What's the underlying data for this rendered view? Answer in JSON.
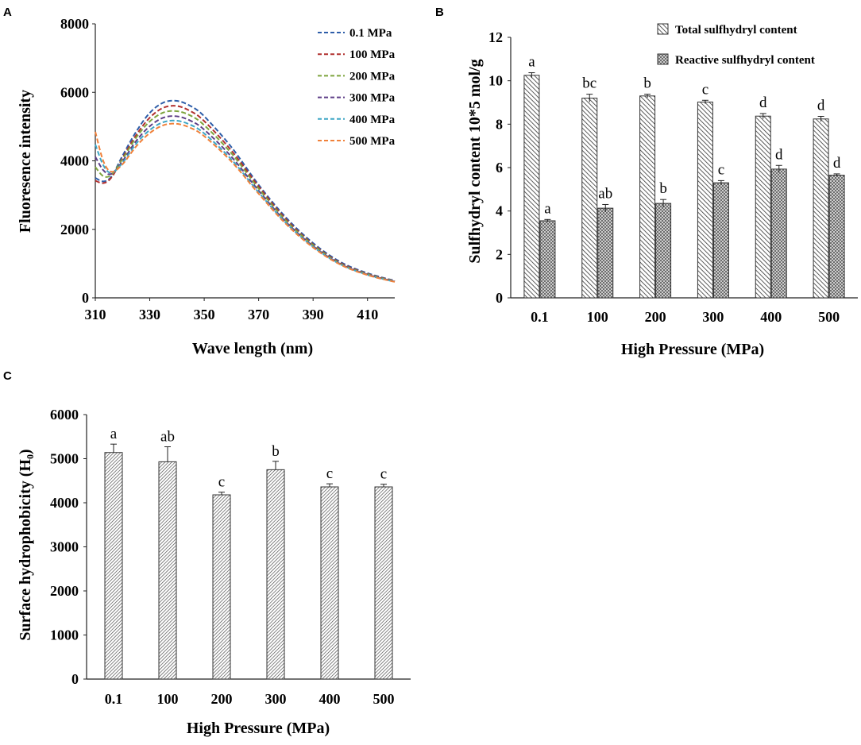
{
  "colors": {
    "axis": "#222222",
    "bar_stroke": "#333333",
    "series": [
      "#2e5ea9",
      "#b1302e",
      "#7ea43d",
      "#5e3f87",
      "#3ea6c5",
      "#f0813a"
    ]
  },
  "chart_data": [
    {
      "panel": "A",
      "type": "line",
      "xlabel": "Wave length (nm)",
      "ylabel": "Fluoresence intensity",
      "xlim": [
        310,
        420
      ],
      "ylim": [
        0,
        8000
      ],
      "xticks": [
        "310",
        "330",
        "350",
        "370",
        "390",
        "410"
      ],
      "yticks": [
        "0",
        "2000",
        "4000",
        "6000",
        "8000"
      ],
      "x": [
        310,
        313,
        316,
        320,
        325,
        330,
        335,
        340,
        345,
        350,
        360,
        370,
        380,
        390,
        400,
        410,
        420
      ],
      "series": [
        {
          "name": "0.1 MPa",
          "color": "#2e5ea9",
          "values": [
            3500,
            3400,
            3550,
            4150,
            4850,
            5400,
            5700,
            5750,
            5600,
            5300,
            4400,
            3300,
            2350,
            1600,
            1050,
            720,
            500
          ]
        },
        {
          "name": "100 MPa",
          "color": "#b1302e",
          "values": [
            3420,
            3350,
            3520,
            4080,
            4750,
            5260,
            5550,
            5600,
            5450,
            5160,
            4300,
            3250,
            2300,
            1560,
            1020,
            700,
            490
          ]
        },
        {
          "name": "200 MPa",
          "color": "#7ea43d",
          "values": [
            3820,
            3550,
            3600,
            4050,
            4680,
            5150,
            5410,
            5450,
            5320,
            5040,
            4220,
            3190,
            2260,
            1540,
            1000,
            690,
            480
          ]
        },
        {
          "name": "300 MPa",
          "color": "#5e3f87",
          "values": [
            4120,
            3720,
            3620,
            3990,
            4580,
            5010,
            5260,
            5300,
            5170,
            4910,
            4120,
            3130,
            2220,
            1510,
            990,
            680,
            475
          ]
        },
        {
          "name": "400 MPa",
          "color": "#3ea6c5",
          "values": [
            4480,
            3860,
            3650,
            3940,
            4500,
            4900,
            5130,
            5170,
            5050,
            4800,
            4040,
            3080,
            2190,
            1490,
            980,
            670,
            470
          ]
        },
        {
          "name": "500 MPa",
          "color": "#f0813a",
          "values": [
            4850,
            3980,
            3680,
            3900,
            4420,
            4810,
            5040,
            5080,
            4960,
            4720,
            3980,
            3040,
            2160,
            1470,
            970,
            665,
            465
          ]
        }
      ]
    },
    {
      "panel": "B",
      "type": "bar",
      "xlabel": "High Pressure (MPa)",
      "ylabel": "Sulfhydryl content  10*5 mol/g",
      "ylim": [
        0,
        12
      ],
      "yticks": [
        "0",
        "2",
        "4",
        "6",
        "8",
        "10",
        "12"
      ],
      "categories": [
        "0.1",
        "100",
        "200",
        "300",
        "400",
        "500"
      ],
      "series": [
        {
          "name": "Total sulfhydryl content",
          "values": [
            10.25,
            9.2,
            9.3,
            9.02,
            8.37,
            8.24
          ],
          "errors": [
            0.12,
            0.18,
            0.08,
            0.08,
            0.12,
            0.12
          ],
          "letters": [
            "a",
            "bc",
            "b",
            "c",
            "d",
            "d"
          ]
        },
        {
          "name": "Reactive sulfhydryl content",
          "values": [
            3.55,
            4.13,
            4.35,
            5.3,
            5.93,
            5.65
          ],
          "errors": [
            0.06,
            0.17,
            0.18,
            0.1,
            0.17,
            0.06
          ],
          "letters": [
            "a",
            "ab",
            "b",
            "c",
            "d",
            "d"
          ]
        }
      ]
    },
    {
      "panel": "C",
      "type": "bar",
      "xlabel": "High Pressure (MPa)",
      "ylabel": "Surface hydrophobicity (H₀)",
      "ylim": [
        0,
        6000
      ],
      "yticks": [
        "0",
        "1000",
        "2000",
        "3000",
        "4000",
        "5000",
        "6000"
      ],
      "categories": [
        "0.1",
        "100",
        "200",
        "300",
        "400",
        "500"
      ],
      "values": [
        5140,
        4930,
        4180,
        4750,
        4360,
        4360
      ],
      "errors": [
        190,
        340,
        60,
        190,
        70,
        60
      ],
      "letters": [
        "a",
        "ab",
        "c",
        "b",
        "c",
        "c"
      ]
    }
  ]
}
